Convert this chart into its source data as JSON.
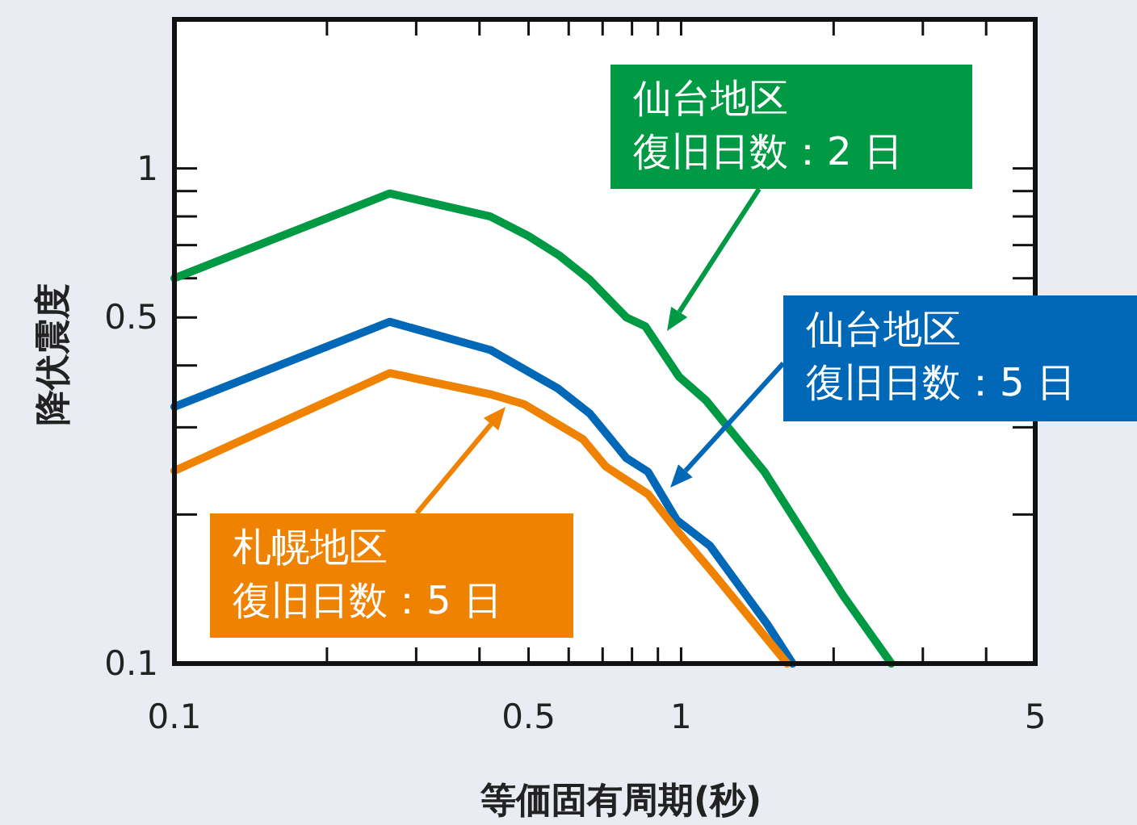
{
  "chart_data": {
    "type": "line",
    "xlabel": "等価固有周期(秒)",
    "ylabel": "降伏震度",
    "log": "xy",
    "xlim": [
      0.1,
      5
    ],
    "ylim": [
      0.1,
      2
    ],
    "xticks": [
      0.1,
      {
        "value": 0.2,
        "label": null
      },
      {
        "value": 0.3,
        "label": null
      },
      {
        "value": 0.4,
        "label": null
      },
      0.5,
      {
        "value": 0.6,
        "label": null
      },
      {
        "value": 0.7,
        "label": null
      },
      {
        "value": 0.8,
        "label": null
      },
      {
        "value": 0.9,
        "label": null
      },
      1,
      {
        "value": 2,
        "label": null
      },
      {
        "value": 3,
        "label": null
      },
      {
        "value": 4,
        "label": null
      },
      5
    ],
    "yticks": [
      0.1,
      {
        "value": 0.2,
        "label": null
      },
      {
        "value": 0.3,
        "label": null
      },
      {
        "value": 0.4,
        "label": null
      },
      0.5,
      {
        "value": 0.6,
        "label": null
      },
      {
        "value": 0.7,
        "label": null
      },
      {
        "value": 0.8,
        "label": null
      },
      {
        "value": 0.9,
        "label": null
      },
      1,
      {
        "value": 2,
        "label": null
      }
    ],
    "grid": false,
    "marker": "none",
    "line_style": "solid",
    "series": [
      {
        "color": "#009a44",
        "x": [
          0.1,
          0.266,
          0.42,
          0.5,
          0.575,
          0.66,
          0.78,
          0.85,
          0.99,
          1.12,
          1.46,
          2.09,
          2.6
        ],
        "values": [
          0.6,
          0.89,
          0.8,
          0.73,
          0.667,
          0.596,
          0.5,
          0.48,
          0.38,
          0.34,
          0.244,
          0.137,
          0.1
        ]
      },
      {
        "color": "#0068b7",
        "x": [
          0.1,
          0.266,
          0.42,
          0.57,
          0.66,
          0.78,
          0.86,
          0.98,
          1.14,
          1.48,
          1.66
        ],
        "values": [
          0.33,
          0.49,
          0.43,
          0.36,
          0.32,
          0.26,
          0.244,
          0.195,
          0.173,
          0.12,
          0.1
        ]
      },
      {
        "color": "#ef8200",
        "x": [
          0.1,
          0.266,
          0.42,
          0.49,
          0.64,
          0.71,
          0.86,
          0.98,
          1.14,
          1.62
        ],
        "values": [
          0.245,
          0.386,
          0.35,
          0.334,
          0.284,
          0.25,
          0.22,
          0.186,
          0.155,
          0.1
        ]
      }
    ],
    "annotations": [
      "仙台地区",
      "復旧日数：2 日",
      "仙台地区",
      "復旧日数：5 日",
      "札幌地区",
      "復旧日数：5 日"
    ]
  }
}
